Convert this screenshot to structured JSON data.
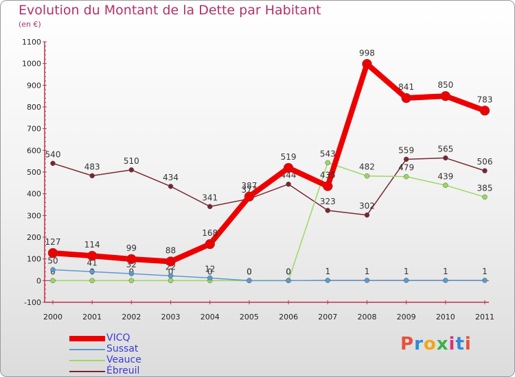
{
  "header": {
    "title": "Evolution du Montant de la Dette par Habitant",
    "unit": "(en €)"
  },
  "logo": {
    "text": "Proxiti",
    "colors": [
      "#e8503a",
      "#2e8bd6",
      "#f2a516",
      "#3db04a",
      "#d8337a",
      "#2e8bd6",
      "#e8503a"
    ]
  },
  "chart_data": {
    "type": "line",
    "title": "Evolution du Montant de la Dette par Habitant",
    "ylabel": "(en €)",
    "x": [
      "2000",
      "2001",
      "2002",
      "2003",
      "2004",
      "2005",
      "2006",
      "2007",
      "2008",
      "2009",
      "2010",
      "2011"
    ],
    "ylim": [
      -100,
      1100
    ],
    "yticks": [
      -100,
      0,
      100,
      200,
      300,
      400,
      500,
      600,
      700,
      800,
      900,
      1000,
      1100
    ],
    "grid": false,
    "legend_position": "bottom-left",
    "series": [
      {
        "name": "Ébreuil",
        "color": "#7a2530",
        "width": 1.5,
        "marker": 3.5,
        "values": [
          540,
          483,
          510,
          434,
          341,
          377,
          444,
          323,
          302,
          559,
          565,
          506
        ],
        "labels": [
          "540",
          "483",
          "510",
          "434",
          "341",
          "377",
          "444",
          "323",
          "302",
          "559",
          "565",
          "506"
        ]
      },
      {
        "name": "Veauce",
        "color": "#9ad860",
        "width": 1.5,
        "marker": 3.5,
        "values": [
          0,
          0,
          0,
          0,
          0,
          0,
          0,
          543,
          482,
          479,
          439,
          385
        ],
        "labels": [
          "0",
          "0",
          "0",
          "0",
          "0",
          "0",
          "0",
          "543",
          "482",
          "479",
          "439",
          "385"
        ]
      },
      {
        "name": "Sussat",
        "color": "#5a9ad0",
        "width": 1.5,
        "marker": 3.5,
        "values": [
          50,
          41,
          32,
          22,
          12,
          0,
          0,
          1,
          1,
          1,
          1,
          1
        ],
        "labels": [
          "50",
          "41",
          "32",
          "22",
          "12",
          "0",
          "0",
          "1",
          "1",
          "1",
          "1",
          "1"
        ]
      },
      {
        "name": "VICQ",
        "color": "#ee0000",
        "width": 8,
        "marker": 7,
        "values": [
          127,
          114,
          99,
          88,
          168,
          387,
          519,
          435,
          998,
          841,
          850,
          783
        ],
        "labels": [
          "127",
          "114",
          "99",
          "88",
          "168",
          "387",
          "519",
          "435",
          "998",
          "841",
          "850",
          "783"
        ]
      }
    ],
    "legend": [
      {
        "name": "VICQ",
        "color": "#ee0000",
        "swatch_width": 8
      },
      {
        "name": "Sussat",
        "color": "#5a9ad0",
        "swatch_width": 1.5
      },
      {
        "name": "Veauce",
        "color": "#9ad860",
        "swatch_width": 1.5
      },
      {
        "name": "Ébreuil",
        "color": "#7a2530",
        "swatch_width": 1.5
      }
    ]
  }
}
